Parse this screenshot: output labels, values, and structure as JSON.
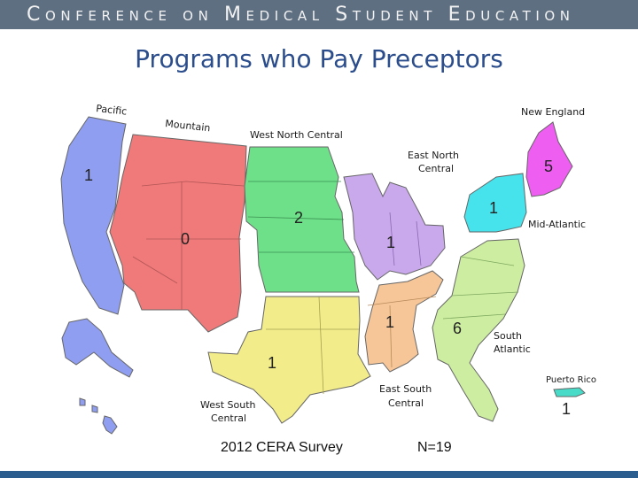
{
  "header": {
    "title": "Conference on Medical Student Education",
    "bar_color": "#5f6f82"
  },
  "slide": {
    "title": "Programs who Pay Preceptors"
  },
  "map": {
    "regions": [
      {
        "name": "Pacific",
        "value": "1",
        "color": "#8f9ef0"
      },
      {
        "name": "Mountain",
        "value": "0",
        "color": "#f07a7a"
      },
      {
        "name": "West North Central",
        "value": "2",
        "color": "#6fe08a"
      },
      {
        "name": "East North Central",
        "value": "1",
        "color": "#c9a8ec"
      },
      {
        "name": "Mid-Atlantic",
        "value": "1",
        "color": "#46e3ec"
      },
      {
        "name": "New England",
        "value": "5",
        "color": "#ee5ef0"
      },
      {
        "name": "West South Central",
        "value": "1",
        "color": "#f2ec8a"
      },
      {
        "name": "East South Central",
        "value": "1",
        "color": "#f6c699"
      },
      {
        "name": "South Atlantic",
        "value": "6",
        "color": "#cdeea0"
      },
      {
        "name": "Puerto Rico",
        "value": "1",
        "color": "#48dcc8"
      }
    ]
  },
  "footer": {
    "survey": "2012 CERA Survey",
    "n": "N=19"
  }
}
